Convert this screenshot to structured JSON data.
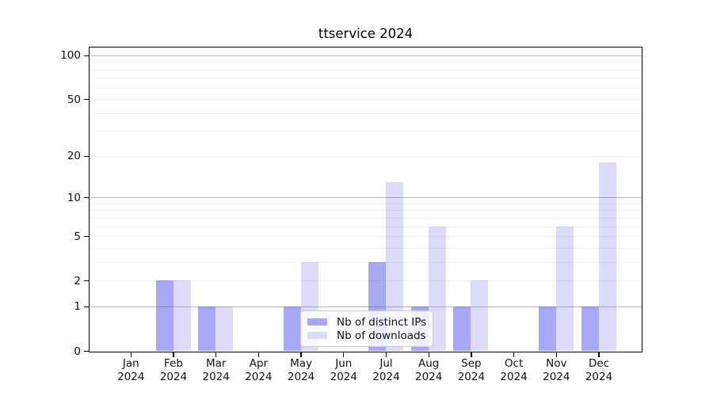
{
  "title": "ttservice 2024",
  "chart_data": {
    "type": "bar",
    "title": "ttservice 2024",
    "scale": "log1p",
    "categories": [
      "Jan 2024",
      "Feb 2024",
      "Mar 2024",
      "Apr 2024",
      "May 2024",
      "Jun 2024",
      "Jul 2024",
      "Aug 2024",
      "Sep 2024",
      "Oct 2024",
      "Nov 2024",
      "Dec 2024"
    ],
    "series": [
      {
        "name": "Nb of distinct IPs",
        "color": "#a8a8f6",
        "values": [
          0,
          2,
          1,
          0,
          1,
          0,
          3,
          1,
          1,
          0,
          1,
          1
        ]
      },
      {
        "name": "Nb of downloads",
        "color": "#dcdcfa",
        "values": [
          0,
          2,
          1,
          0,
          3,
          0,
          13,
          6,
          2,
          0,
          6,
          18
        ]
      }
    ],
    "yticks": [
      0,
      1,
      2,
      5,
      10,
      20,
      50,
      100
    ],
    "ylim": [
      0,
      113
    ],
    "grid": "major 1/10/100 + minor log decades, drawn over bars",
    "legend_position": "lower-center-inside"
  },
  "colors": {
    "background": "#ffffff",
    "axis": "#000000",
    "text": "#111111",
    "grid_major": "#bbbbbb",
    "grid_minor": "#f0f0f0",
    "legend_border": "#cccccc"
  }
}
